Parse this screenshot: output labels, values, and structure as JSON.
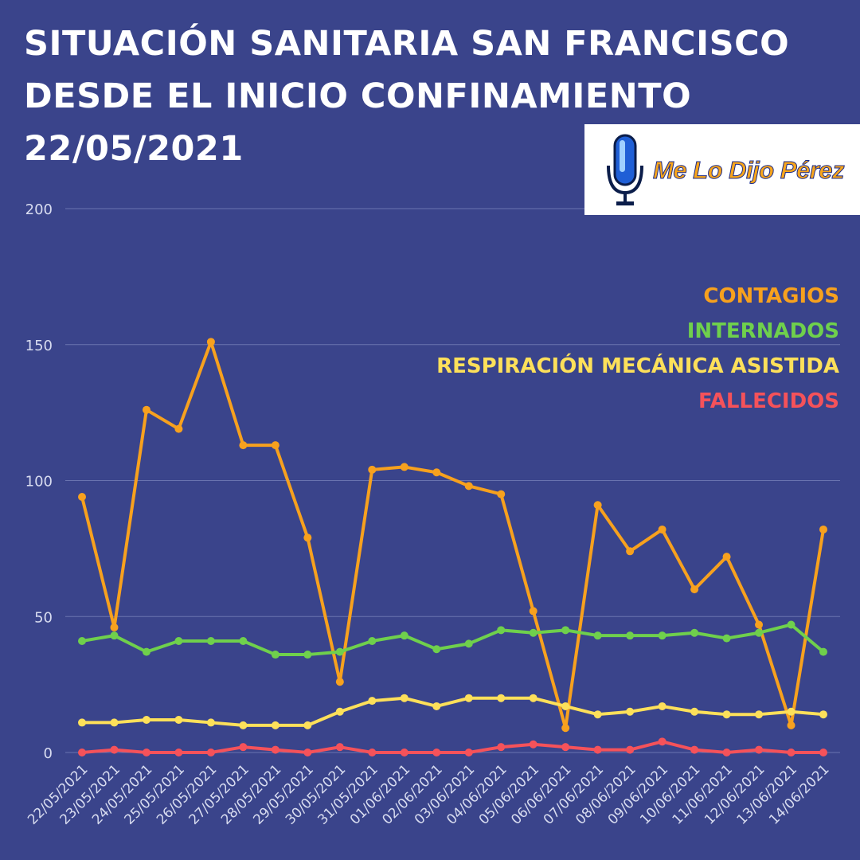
{
  "title_lines": [
    "SITUACIÓN SANITARIA SAN FRANCISCO",
    "DESDE EL INICIO CONFINAMIENTO",
    "22/05/2021"
  ],
  "logo": {
    "text": "Me Lo Dijo Pérez",
    "icon": "microphone-icon"
  },
  "colors": {
    "background": "#3a448b",
    "grid": "#6a74b0",
    "axis_text": "#d8dcf0"
  },
  "chart_data": {
    "type": "line",
    "title": "SITUACIÓN SANITARIA SAN FRANCISCO DESDE EL INICIO CONFINAMIENTO 22/05/2021",
    "xlabel": "",
    "ylabel": "",
    "ylim": [
      0,
      200
    ],
    "yticks": [
      0,
      50,
      100,
      150,
      200
    ],
    "grid": true,
    "legend_placement": "top-right",
    "categories": [
      "22/05/2021",
      "23/05/2021",
      "24/05/2021",
      "25/05/2021",
      "26/05/2021",
      "27/05/2021",
      "28/05/2021",
      "29/05/2021",
      "30/05/2021",
      "31/05/2021",
      "01/06/2021",
      "02/06/2021",
      "03/06/2021",
      "04/06/2021",
      "05/06/2021",
      "06/06/2021",
      "07/06/2021",
      "08/06/2021",
      "09/06/2021",
      "10/06/2021",
      "11/06/2021",
      "12/06/2021",
      "13/06/2021",
      "14/06/2021"
    ],
    "series": [
      {
        "name": "CONTAGIOS",
        "color": "#f7a11e",
        "values": [
          94,
          46,
          126,
          119,
          151,
          113,
          113,
          79,
          26,
          104,
          105,
          103,
          98,
          95,
          52,
          9,
          91,
          74,
          82,
          60,
          72,
          47,
          10,
          82
        ]
      },
      {
        "name": "INTERNADOS",
        "color": "#6fd04c",
        "values": [
          41,
          43,
          37,
          41,
          41,
          41,
          36,
          36,
          37,
          41,
          43,
          38,
          40,
          45,
          44,
          45,
          43,
          43,
          43,
          44,
          42,
          44,
          47,
          37
        ]
      },
      {
        "name": "RESPIRACIÓN MECÁNICA ASISTIDA",
        "color": "#fde05a",
        "values": [
          11,
          11,
          12,
          12,
          11,
          10,
          10,
          10,
          15,
          19,
          20,
          17,
          20,
          20,
          20,
          17,
          14,
          15,
          17,
          15,
          14,
          14,
          15,
          14
        ]
      },
      {
        "name": "FALLECIDOS",
        "color": "#f5525a",
        "values": [
          0,
          1,
          0,
          0,
          0,
          2,
          1,
          0,
          2,
          0,
          0,
          0,
          0,
          2,
          3,
          2,
          1,
          1,
          4,
          1,
          0,
          1,
          0,
          0
        ]
      }
    ]
  }
}
